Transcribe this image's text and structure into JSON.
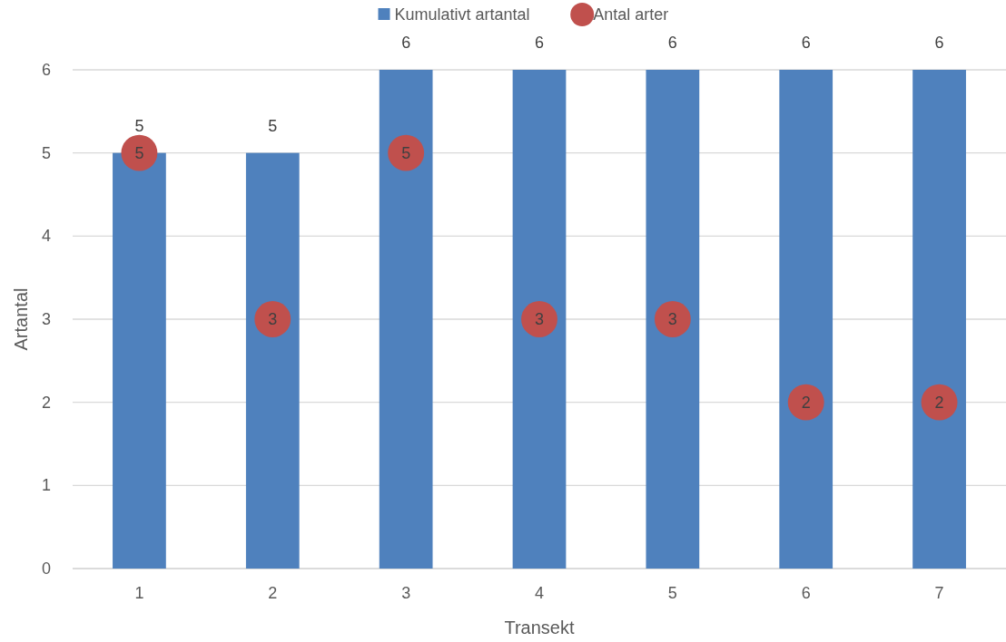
{
  "chart_data": {
    "type": "bar",
    "xlabel": "Transekt",
    "ylabel": "Artantal",
    "categories": [
      "1",
      "2",
      "3",
      "4",
      "5",
      "6",
      "7"
    ],
    "series": [
      {
        "name": "Kumulativt artantal",
        "color": "#4f81bd",
        "values": [
          5,
          5,
          6,
          6,
          6,
          6,
          6
        ]
      },
      {
        "name": "Antal arter",
        "type": "scatter",
        "color": "#c0504d",
        "x": [
          "1",
          "2",
          "3",
          "4",
          "5",
          "6",
          "7"
        ],
        "values": [
          5,
          3,
          5,
          3,
          3,
          2,
          2
        ]
      }
    ],
    "ylim": [
      0,
      6
    ],
    "yticks": [
      0,
      1,
      2,
      3,
      4,
      5,
      6
    ],
    "grid": "y",
    "legend": "top",
    "marker": "circle",
    "data_labels": true
  }
}
